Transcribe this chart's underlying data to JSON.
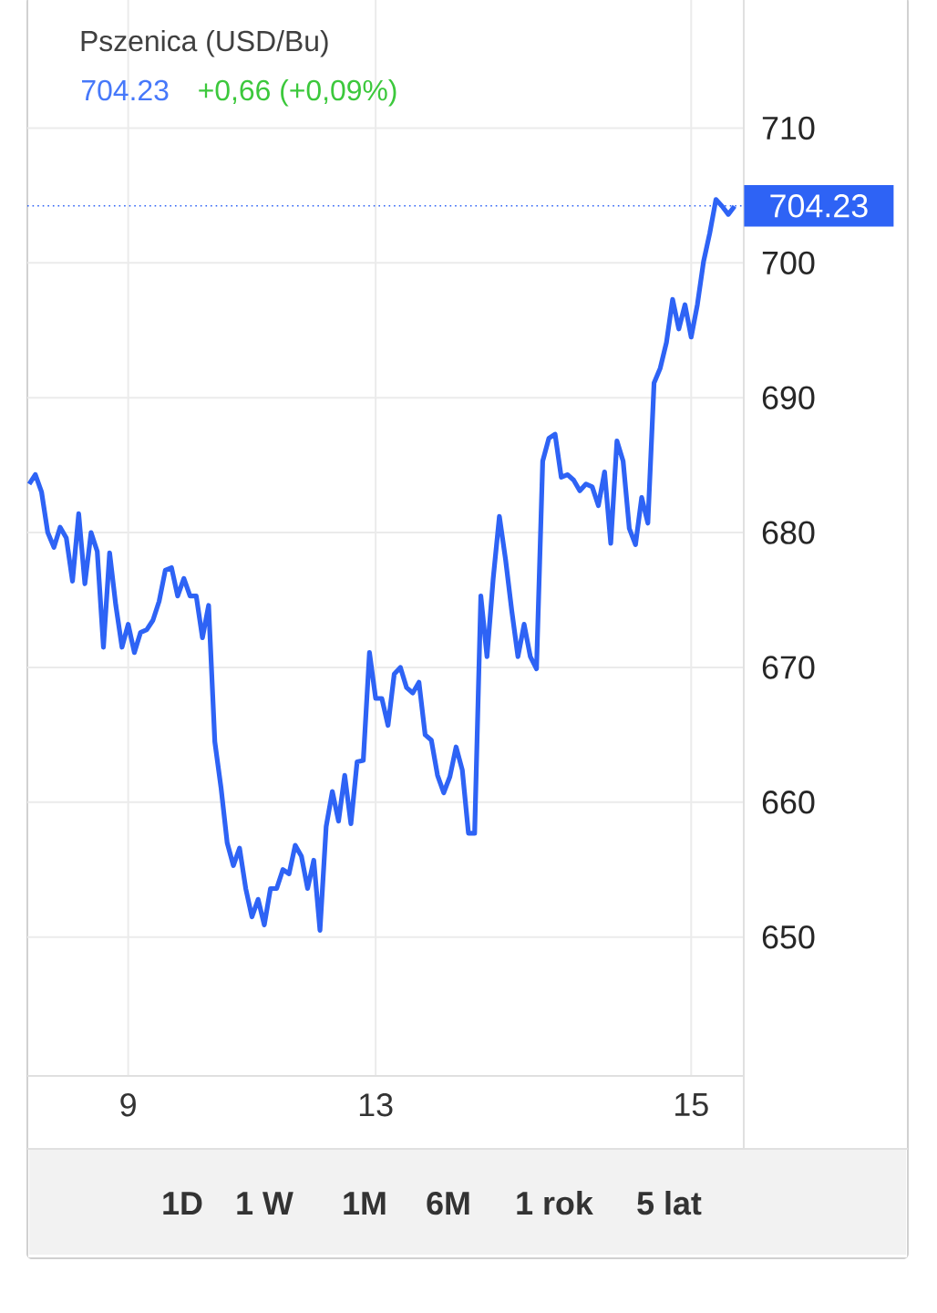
{
  "chart_data": {
    "type": "line",
    "title": "Pszenica (USD/Bu)",
    "subtitle": "704.23",
    "annotations": [
      "+0,66 (+0,09%)",
      "1D",
      "1 W",
      "1M",
      "6M",
      "1 rok",
      "5 lat"
    ],
    "categories": [
      null,
      null,
      null,
      null,
      null,
      null,
      null,
      null,
      null,
      null,
      null,
      null,
      null,
      null,
      null,
      null,
      "9",
      null,
      null,
      null,
      null,
      null,
      null,
      null,
      null,
      null,
      null,
      null,
      null,
      null,
      null,
      null,
      null,
      null,
      null,
      null,
      null,
      null,
      null,
      null,
      null,
      null,
      null,
      null,
      null,
      null,
      null,
      null,
      null,
      null,
      null,
      null,
      null,
      null,
      null,
      null,
      "13",
      null,
      null,
      null,
      null,
      null,
      null,
      null,
      null,
      null,
      null,
      null,
      null,
      null,
      null,
      null,
      null,
      null,
      null,
      null,
      null,
      null,
      null,
      null,
      null,
      null,
      null,
      null,
      null,
      null,
      null,
      null,
      null,
      null,
      null,
      null,
      null,
      null,
      null,
      null,
      null,
      null,
      null,
      null,
      null,
      null,
      null,
      null,
      null,
      null,
      null,
      "15",
      null,
      null,
      null,
      null,
      null,
      null,
      null
    ],
    "series": [
      {
        "color": "#2e63f5",
        "values": [
          683.6,
          684.3,
          683.0,
          680.0,
          678.9,
          680.4,
          679.6,
          676.4,
          681.4,
          676.2,
          680.0,
          678.6,
          671.5,
          678.5,
          674.6,
          671.5,
          673.2,
          671.1,
          672.6,
          672.8,
          673.5,
          674.9,
          677.2,
          677.4,
          675.3,
          676.6,
          675.3,
          675.3,
          672.2,
          674.6,
          664.5,
          661.1,
          657.0,
          655.3,
          656.6,
          653.6,
          651.5,
          652.8,
          650.9,
          653.6,
          653.6,
          655.0,
          654.7,
          656.8,
          656.0,
          653.6,
          655.7,
          650.5,
          658.2,
          660.8,
          658.6,
          662.0,
          658.4,
          663.0,
          663.1,
          671.1,
          667.7,
          667.7,
          665.7,
          669.5,
          670.0,
          668.5,
          668.1,
          668.9,
          665.0,
          664.6,
          662.0,
          660.7,
          661.9,
          664.1,
          662.4,
          657.7,
          657.7,
          675.3,
          670.8,
          676.6,
          681.2,
          678.0,
          674.2,
          670.8,
          673.2,
          670.8,
          669.9,
          685.3,
          687.0,
          687.3,
          684.1,
          684.3,
          683.9,
          683.1,
          683.6,
          683.4,
          682.0,
          684.5,
          679.2,
          686.8,
          685.3,
          680.3,
          679.1,
          682.6,
          680.7,
          691.1,
          692.2,
          694.1,
          697.3,
          695.1,
          696.9,
          694.5,
          696.9,
          700.1,
          702.2,
          704.7,
          704.2,
          703.6,
          704.2
        ]
      }
    ],
    "ylim": [
      639.7,
      719.5
    ],
    "yticks": [
      650,
      660,
      670,
      680,
      690,
      700,
      710
    ],
    "grid": true,
    "marker": "none",
    "line_style": "solid",
    "ref_lines": [
      {
        "axis": "y",
        "value": 704.23,
        "label": "704.23",
        "color": "#2e63f5",
        "line_style": "dotted"
      }
    ]
  }
}
